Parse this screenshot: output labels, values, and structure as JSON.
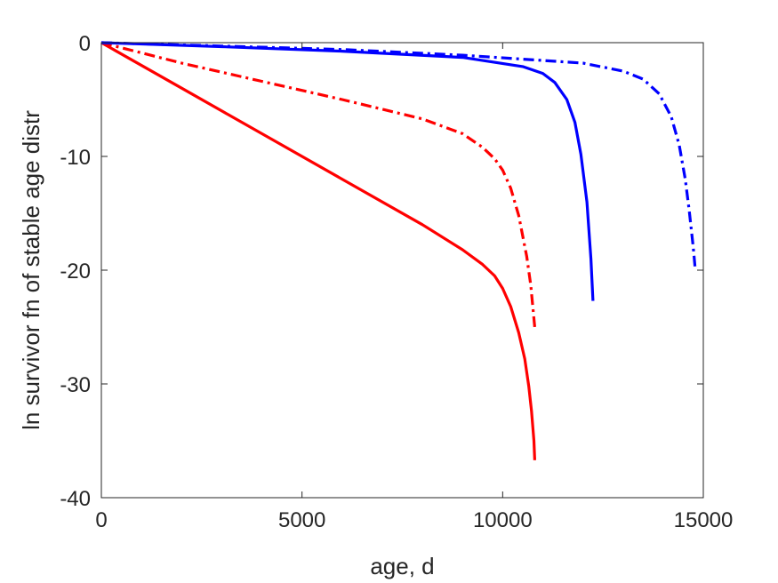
{
  "chart_data": {
    "type": "line",
    "title": "",
    "xlabel": "age, d",
    "ylabel": "ln survivor fn of stable age distr",
    "xlim": [
      0,
      15000
    ],
    "ylim": [
      -40,
      0
    ],
    "xticks": [
      0,
      5000,
      10000,
      15000
    ],
    "xtick_labels": [
      "0",
      "5000",
      "10000",
      "15000"
    ],
    "yticks": [
      0,
      -10,
      -20,
      -30,
      -40
    ],
    "ytick_labels": [
      "0",
      "-10",
      "-20",
      "-30",
      "-40"
    ],
    "grid": false,
    "legend": "none",
    "series": [
      {
        "color": "#ff0000",
        "style": "solid",
        "x": [
          0,
          2000,
          4000,
          6000,
          8000,
          9000,
          9500,
          9800,
          10000,
          10200,
          10400,
          10550,
          10650,
          10720,
          10780,
          10800
        ],
        "y": [
          0,
          -4,
          -8,
          -12,
          -16,
          -18.2,
          -19.5,
          -20.5,
          -21.6,
          -23.2,
          -25.5,
          -27.8,
          -30.2,
          -32.4,
          -35,
          -36.7
        ]
      },
      {
        "color": "#ff0000",
        "style": "dashdot",
        "x": [
          0,
          2000,
          4000,
          6000,
          8000,
          9000,
          9500,
          9800,
          10000,
          10200,
          10400,
          10600,
          10700,
          10800
        ],
        "y": [
          0,
          -1.8,
          -3.4,
          -5,
          -6.7,
          -8,
          -9.2,
          -10.2,
          -11.2,
          -12.8,
          -15.2,
          -18.8,
          -21.3,
          -25
        ]
      },
      {
        "color": "#0000ff",
        "style": "solid",
        "x": [
          0,
          3000,
          6000,
          9000,
          10500,
          11000,
          11300,
          11600,
          11800,
          11950,
          12100,
          12200,
          12250
        ],
        "y": [
          0,
          -0.35,
          -0.75,
          -1.3,
          -2.1,
          -2.7,
          -3.5,
          -5,
          -7,
          -9.8,
          -14,
          -19,
          -22.7
        ]
      },
      {
        "color": "#0000ff",
        "style": "dashdot",
        "x": [
          0,
          3000,
          6000,
          9000,
          12000,
          13000,
          13500,
          13900,
          14200,
          14400,
          14550,
          14650,
          14750,
          14800
        ],
        "y": [
          0,
          -0.3,
          -0.6,
          -1.1,
          -1.8,
          -2.5,
          -3.2,
          -4.5,
          -6.5,
          -9,
          -12,
          -14.8,
          -18,
          -20
        ]
      }
    ]
  }
}
